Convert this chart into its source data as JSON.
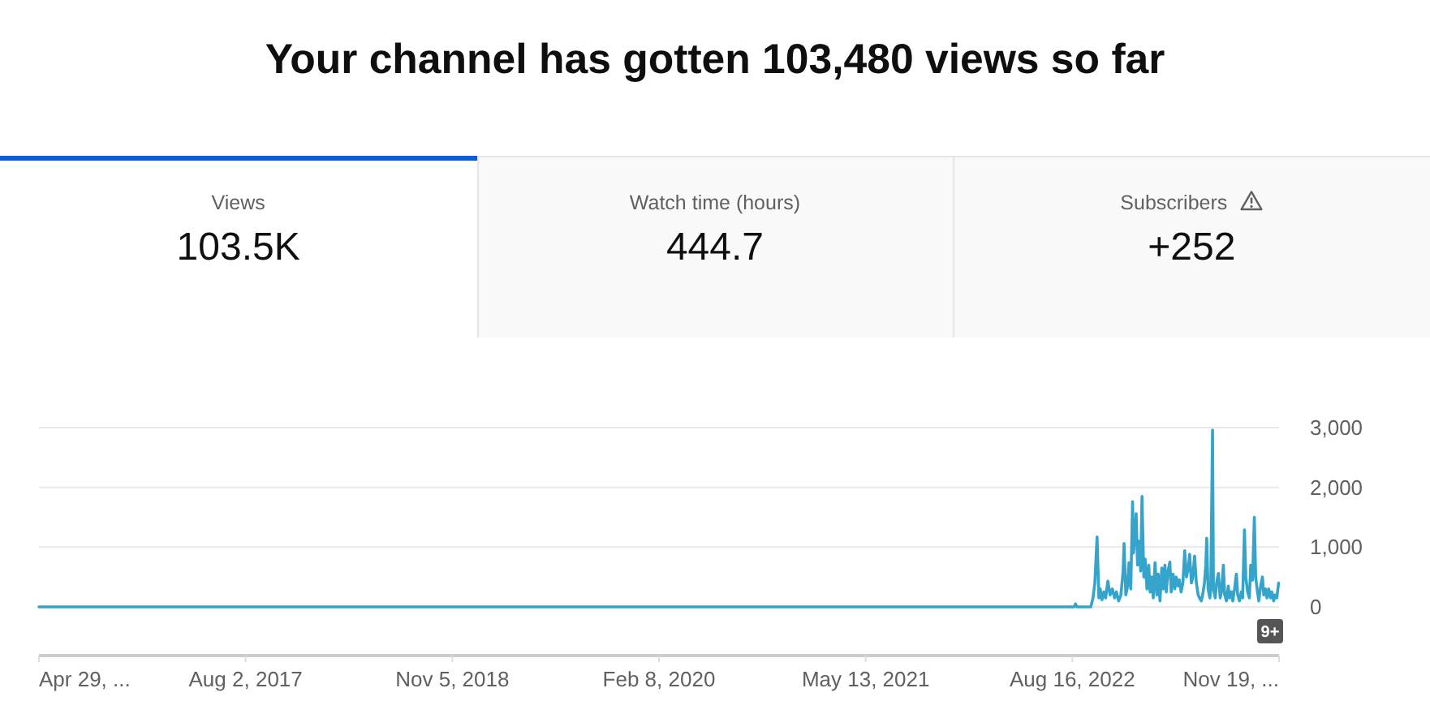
{
  "chart_data": [
    {
      "type": "other",
      "title": "Your channel has gotten 103,480 views so far",
      "categories": [
        "Views",
        "Watch time (hours)",
        "Subscribers"
      ],
      "value_labels": [
        "103.5K",
        "444.7",
        "+252"
      ]
    },
    {
      "type": "line",
      "color": "#34a4ca",
      "x": [
        "2016-04-29",
        "2022-08-20",
        "2022-08-23",
        "2022-08-26",
        "2022-09-26",
        "2022-10-01",
        "2022-10-05",
        "2022-10-10",
        "2022-10-14",
        "2022-10-17",
        "2022-10-21",
        "2022-10-25",
        "2022-10-29",
        "2022-11-03",
        "2022-11-08",
        "2022-11-13",
        "2022-11-18",
        "2022-11-22",
        "2022-11-27",
        "2022-12-02",
        "2022-12-07",
        "2022-12-09",
        "2022-12-13",
        "2022-12-17",
        "2022-12-20",
        "2022-12-24",
        "2022-12-28",
        "2022-12-30",
        "2023-01-01",
        "2023-01-05",
        "2023-01-08",
        "2023-01-11",
        "2023-01-15",
        "2023-01-18",
        "2023-01-22",
        "2023-01-25",
        "2023-01-29",
        "2023-02-02",
        "2023-02-05",
        "2023-02-09",
        "2023-02-12",
        "2023-02-16",
        "2023-02-20",
        "2023-02-23",
        "2023-02-27",
        "2023-03-03",
        "2023-03-06",
        "2023-03-10",
        "2023-03-13",
        "2023-03-17",
        "2023-03-21",
        "2023-03-24",
        "2023-03-28",
        "2023-04-01",
        "2023-04-04",
        "2023-04-08",
        "2023-04-11",
        "2023-04-15",
        "2023-04-19",
        "2023-04-23",
        "2023-04-27",
        "2023-05-01",
        "2023-05-04",
        "2023-05-08",
        "2023-05-11",
        "2023-05-15",
        "2023-05-19",
        "2023-05-23",
        "2023-05-26",
        "2023-05-30",
        "2023-06-02",
        "2023-06-06",
        "2023-06-09",
        "2023-06-11",
        "2023-06-14",
        "2023-06-18",
        "2023-06-20",
        "2023-06-24",
        "2023-06-26",
        "2023-06-30",
        "2023-07-03",
        "2023-07-07",
        "2023-07-11",
        "2023-07-14",
        "2023-07-18",
        "2023-07-21",
        "2023-07-25",
        "2023-07-29",
        "2023-08-01",
        "2023-08-05",
        "2023-08-08",
        "2023-08-12",
        "2023-08-16",
        "2023-08-19",
        "2023-08-23",
        "2023-08-27",
        "2023-08-30",
        "2023-09-03",
        "2023-09-06",
        "2023-09-10",
        "2023-09-14",
        "2023-09-17",
        "2023-09-21",
        "2023-09-25",
        "2023-09-28",
        "2023-10-02",
        "2023-10-05",
        "2023-10-09",
        "2023-10-13",
        "2023-10-16",
        "2023-10-20",
        "2023-10-23",
        "2023-10-27",
        "2023-10-31",
        "2023-11-03",
        "2023-11-07",
        "2023-11-10",
        "2023-11-14",
        "2023-11-18"
      ],
      "values": [
        0,
        0,
        50,
        0,
        0,
        150,
        400,
        1170,
        150,
        300,
        120,
        250,
        150,
        430,
        200,
        300,
        150,
        250,
        100,
        200,
        600,
        1060,
        200,
        350,
        740,
        300,
        1760,
        900,
        1100,
        1560,
        700,
        1100,
        600,
        1850,
        500,
        800,
        300,
        700,
        250,
        500,
        150,
        740,
        200,
        550,
        100,
        650,
        300,
        700,
        250,
        600,
        750,
        250,
        550,
        300,
        500,
        350,
        450,
        250,
        400,
        940,
        500,
        650,
        880,
        400,
        500,
        850,
        400,
        200,
        150,
        100,
        200,
        400,
        700,
        1150,
        300,
        150,
        300,
        2960,
        300,
        150,
        400,
        560,
        150,
        250,
        700,
        200,
        100,
        350,
        150,
        250,
        100,
        300,
        550,
        200,
        100,
        250,
        150,
        1290,
        500,
        250,
        150,
        700,
        450,
        1500,
        500,
        250,
        100,
        350,
        500,
        200,
        300,
        150,
        300,
        150,
        250,
        100,
        200,
        150,
        400
      ],
      "xlim": [
        "2016-04-29",
        "2023-11-19"
      ],
      "xticks": [
        {
          "value": "2016-04-29",
          "label": "Apr 29, ..."
        },
        {
          "value": "2017-08-02",
          "label": "Aug 2, 2017"
        },
        {
          "value": "2018-11-05",
          "label": "Nov 5, 2018"
        },
        {
          "value": "2020-02-08",
          "label": "Feb 8, 2020"
        },
        {
          "value": "2021-05-13",
          "label": "May 13, 2021"
        },
        {
          "value": "2022-08-16",
          "label": "Aug 16, 2022"
        },
        {
          "value": "2023-11-19",
          "label": "Nov 19, ..."
        }
      ],
      "ylim": [
        0,
        3000
      ],
      "yticks": [
        0,
        {
          "value": 1000,
          "label": "1,000"
        },
        {
          "value": 2000,
          "label": "2,000"
        },
        {
          "value": 3000,
          "label": "3,000"
        }
      ],
      "grid": "y",
      "annotations": [
        "9+"
      ]
    }
  ]
}
